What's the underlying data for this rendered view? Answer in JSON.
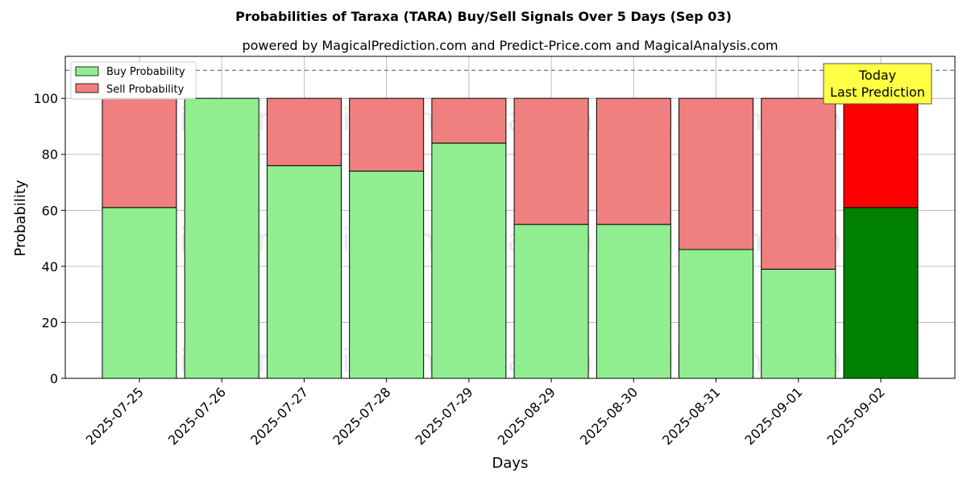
{
  "chart_data": {
    "type": "bar",
    "stacked": true,
    "title": "Probabilities of Taraxa (TARA) Buy/Sell Signals Over 5 Days (Sep 03)",
    "subtitle": "powered by MagicalPrediction.com and Predict-Price.com and MagicalAnalysis.com",
    "xlabel": "Days",
    "ylabel": "Probability",
    "ylim": [
      0,
      115
    ],
    "yticks": [
      0,
      20,
      40,
      60,
      80,
      100
    ],
    "grid": true,
    "legend_position": "top-left",
    "reference_line": 110,
    "categories": [
      "2025-07-25",
      "2025-07-26",
      "2025-07-27",
      "2025-07-28",
      "2025-07-29",
      "2025-08-29",
      "2025-08-30",
      "2025-08-31",
      "2025-09-01",
      "2025-09-02"
    ],
    "series": [
      {
        "name": "Buy Probability",
        "values": [
          61,
          100,
          76,
          74,
          84,
          55,
          55,
          46,
          39,
          61
        ],
        "color": "#90ee90",
        "highlight_color": "#008000"
      },
      {
        "name": "Sell Probability",
        "values": [
          39,
          0,
          24,
          26,
          16,
          45,
          45,
          54,
          61,
          39
        ],
        "color": "#f08080",
        "highlight_color": "#ff0000"
      }
    ],
    "highlight_index": 9,
    "annotation": {
      "line1": "Today",
      "line2": "Last Prediction",
      "color": "#ffff44"
    },
    "watermarks": [
      "MagicalAnalysis.com",
      "MagicalPrediction.com"
    ]
  }
}
